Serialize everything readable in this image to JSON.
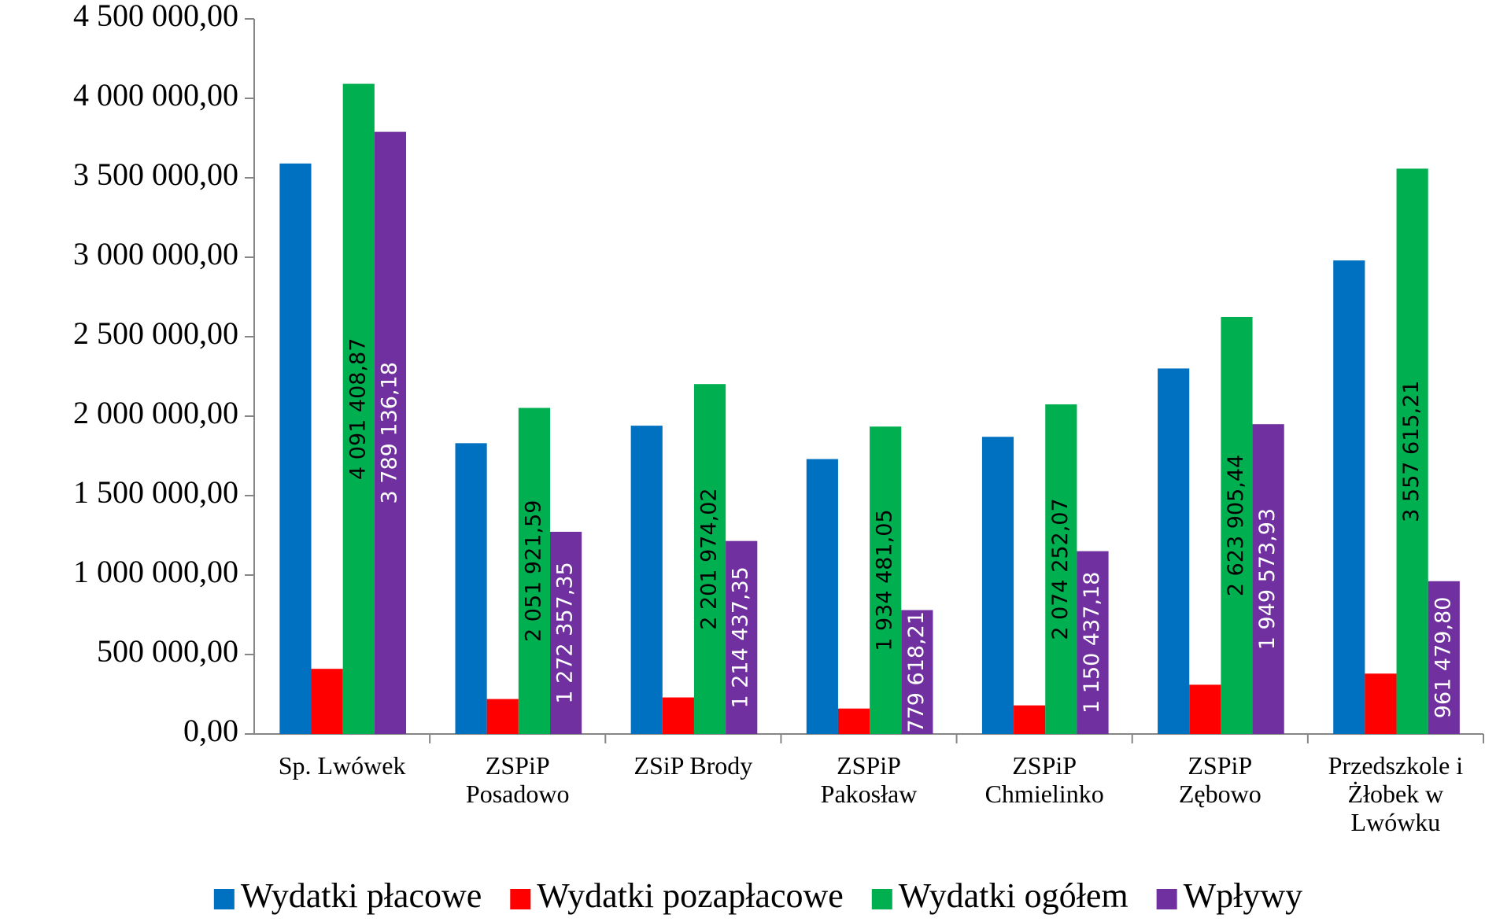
{
  "chart_data": {
    "type": "bar",
    "categories": [
      "Sp. Lwówek",
      "ZSPiP\nPosadowo",
      "ZSiP Brody",
      "ZSPiP\nPakosław",
      "ZSPiP\nChmielinko",
      "ZSPiP\nZębowo",
      "Przedszkole i\nŻłobek w\nLwówku"
    ],
    "series": [
      {
        "name": "Wydatki płacowe",
        "color": "#0070c0",
        "values": [
          3590000,
          1830000,
          1940000,
          1730000,
          1870000,
          2300000,
          2980000
        ]
      },
      {
        "name": "Wydatki pozapłacowe",
        "color": "#ff0000",
        "values": [
          410000,
          220000,
          230000,
          160000,
          180000,
          310000,
          380000
        ]
      },
      {
        "name": "Wydatki ogółem",
        "color": "#00b050",
        "label_color": "#000000",
        "values": [
          4091408.87,
          2051921.59,
          2201974.02,
          1934481.05,
          2074252.07,
          2623905.44,
          3557615.21
        ],
        "value_labels": [
          "4 091 408,87",
          "2 051 921,59",
          "2 201 974,02",
          "1 934 481,05",
          "2 074 252,07",
          "2 623 905,44",
          "3 557 615,21"
        ]
      },
      {
        "name": "Wpływy",
        "color": "#7030a0",
        "label_color": "#ffffff",
        "values": [
          3789136.18,
          1272357.35,
          1214437.35,
          779618.21,
          1150437.18,
          1949573.93,
          961479.8
        ],
        "value_labels": [
          "3 789 136,18",
          "1 272 357,35",
          "1 214 437,35",
          "779 618,21",
          "1 150 437,18",
          "1 949 573,93",
          "961 479,80"
        ]
      }
    ],
    "ylim": [
      0,
      4500000
    ],
    "yticks": [
      {
        "value": 0,
        "label": "0,00"
      },
      {
        "value": 500000,
        "label": "500 000,00"
      },
      {
        "value": 1000000,
        "label": "1 000 000,00"
      },
      {
        "value": 1500000,
        "label": "1 500 000,00"
      },
      {
        "value": 2000000,
        "label": "2 000 000,00"
      },
      {
        "value": 2500000,
        "label": "2 500 000,00"
      },
      {
        "value": 3000000,
        "label": "3 000 000,00"
      },
      {
        "value": 3500000,
        "label": "3 500 000,00"
      },
      {
        "value": 4000000,
        "label": "4 000 000,00"
      },
      {
        "value": 4500000,
        "label": "4 500 000,00"
      }
    ],
    "grid": false,
    "legend": "bottom"
  }
}
